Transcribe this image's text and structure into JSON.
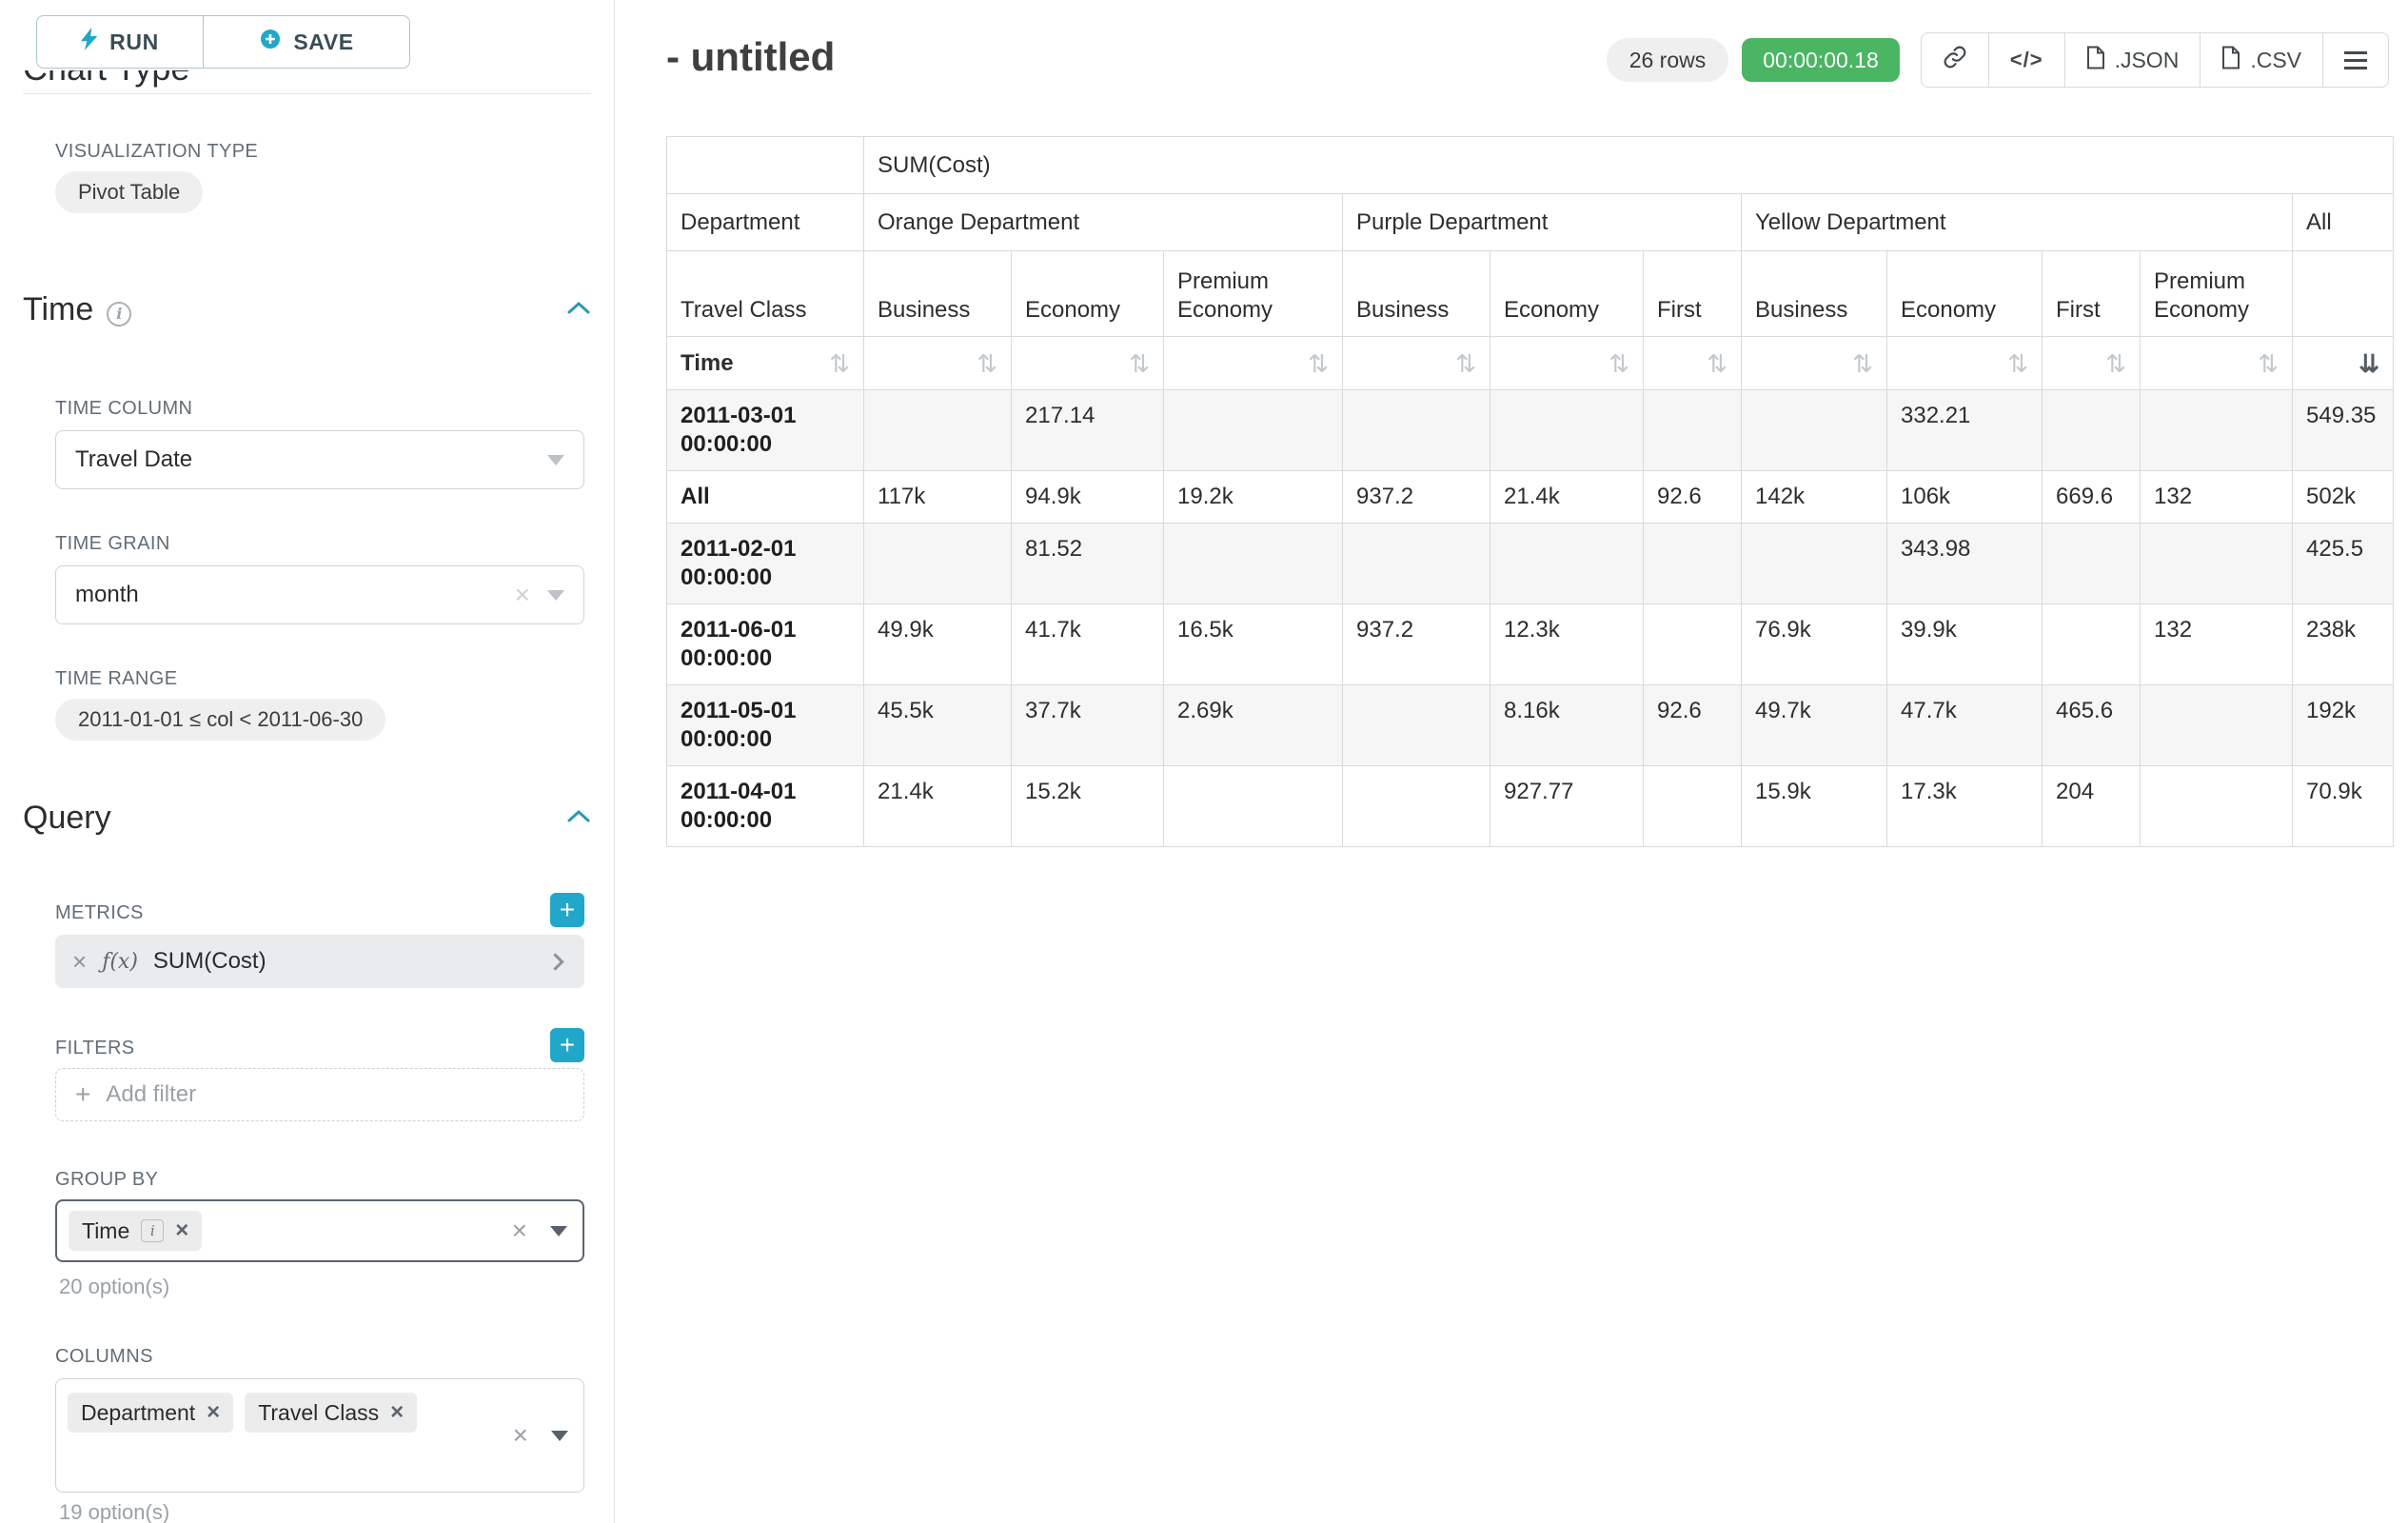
{
  "colors": {
    "primary": "#20a7c9",
    "success": "#4ab663",
    "tag_bg": "#ececec"
  },
  "icons": {
    "info": "i",
    "close": "×",
    "plus": "+",
    "sort": "⇅",
    "sort_desc": "⇊"
  },
  "sidebar": {
    "run_button": "RUN",
    "save_button": "SAVE",
    "clipped_section_title": "Chart Type",
    "visualization": {
      "label": "VISUALIZATION TYPE",
      "value": "Pivot Table"
    },
    "time": {
      "title": "Time",
      "time_column_label": "TIME COLUMN",
      "time_column_value": "Travel Date",
      "time_grain_label": "TIME GRAIN",
      "time_grain_value": "month",
      "time_range_label": "TIME RANGE",
      "time_range_value": "2011-01-01 ≤ col < 2011-06-30"
    },
    "query": {
      "title": "Query",
      "metrics_label": "METRICS",
      "metric_fx": "ƒ(x)",
      "metric_name": "SUM(Cost)",
      "filters_label": "FILTERS",
      "add_filter_placeholder": "Add filter",
      "group_by_label": "GROUP BY",
      "group_by_tags": [
        "Time"
      ],
      "group_by_hint": "20 option(s)",
      "columns_label": "COLUMNS",
      "columns_tags": [
        "Department",
        "Travel Class"
      ],
      "columns_hint": "19 option(s)"
    }
  },
  "header": {
    "title": "- untitled",
    "row_count": "26 rows",
    "timer": "00:00:00.18",
    "buttons": {
      "code": "</>",
      "json": ".JSON",
      "csv": ".CSV"
    }
  },
  "pivot": {
    "metric": "SUM(Cost)",
    "column_dimension": "Department",
    "row_dimension": "Travel Class",
    "row_axis": "Time",
    "column_groups": [
      {
        "label": "Orange Department",
        "classes": [
          "Business",
          "Economy",
          "Premium Economy"
        ]
      },
      {
        "label": "Purple Department",
        "classes": [
          "Business",
          "Economy",
          "First"
        ]
      },
      {
        "label": "Yellow Department",
        "classes": [
          "Business",
          "Economy",
          "First",
          "Premium Economy"
        ]
      },
      {
        "label": "All",
        "classes": [
          ""
        ]
      }
    ],
    "rows": [
      {
        "label": "2011-03-01 00:00:00",
        "values": [
          "",
          "217.14",
          "",
          "",
          "",
          "",
          "",
          "332.21",
          "",
          "",
          "549.35"
        ]
      },
      {
        "label": "All",
        "values": [
          "117k",
          "94.9k",
          "19.2k",
          "937.2",
          "21.4k",
          "92.6",
          "142k",
          "106k",
          "669.6",
          "132",
          "502k"
        ]
      },
      {
        "label": "2011-02-01 00:00:00",
        "values": [
          "",
          "81.52",
          "",
          "",
          "",
          "",
          "",
          "343.98",
          "",
          "",
          "425.5"
        ]
      },
      {
        "label": "2011-06-01 00:00:00",
        "values": [
          "49.9k",
          "41.7k",
          "16.5k",
          "937.2",
          "12.3k",
          "",
          "76.9k",
          "39.9k",
          "",
          "132",
          "238k"
        ]
      },
      {
        "label": "2011-05-01 00:00:00",
        "values": [
          "45.5k",
          "37.7k",
          "2.69k",
          "",
          "8.16k",
          "92.6",
          "49.7k",
          "47.7k",
          "465.6",
          "",
          "192k"
        ]
      },
      {
        "label": "2011-04-01 00:00:00",
        "values": [
          "21.4k",
          "15.2k",
          "",
          "",
          "927.77",
          "",
          "15.9k",
          "17.3k",
          "204",
          "",
          "70.9k"
        ]
      }
    ]
  }
}
